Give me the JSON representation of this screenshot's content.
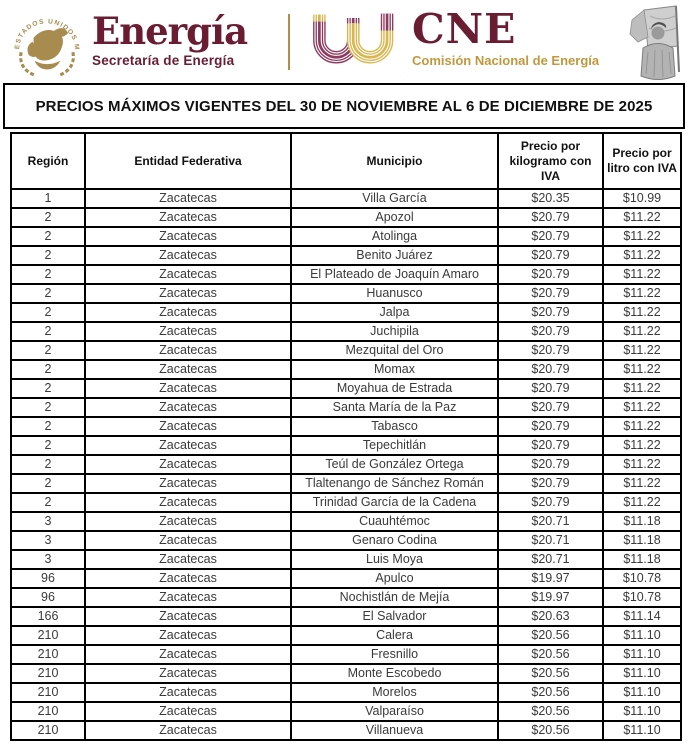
{
  "branding": {
    "sener": {
      "seal_text": "ESTADOS UNIDOS MEXICANOS",
      "wordmark": "Energía",
      "subtitle": "Secretaría de Energía"
    },
    "cne": {
      "wordmark": "CNE",
      "subtitle": "Comisión Nacional de Energía"
    }
  },
  "colors": {
    "maroon": "#691c32",
    "gold": "#b08e4a",
    "cne_arc_gold": "#d9b64e",
    "cne_arc_maroon": "#8d3a60",
    "cne_subtitle_gold": "#c1983d",
    "table_border": "#000000",
    "body_text": "#3a3a3a"
  },
  "title": "PRECIOS MÁXIMOS VIGENTES DEL 30 DE NOVIEMBRE AL 6 DE DICIEMBRE DE 2025",
  "table": {
    "columns": [
      "Región",
      "Entidad Federativa",
      "Municipio",
      "Precio por kilogramo con IVA",
      "Precio por litro con IVA"
    ],
    "rows": [
      [
        "1",
        "Zacatecas",
        "Villa García",
        "$20.35",
        "$10.99"
      ],
      [
        "2",
        "Zacatecas",
        "Apozol",
        "$20.79",
        "$11.22"
      ],
      [
        "2",
        "Zacatecas",
        "Atolinga",
        "$20.79",
        "$11.22"
      ],
      [
        "2",
        "Zacatecas",
        "Benito Juárez",
        "$20.79",
        "$11.22"
      ],
      [
        "2",
        "Zacatecas",
        "El Plateado de Joaquín Amaro",
        "$20.79",
        "$11.22"
      ],
      [
        "2",
        "Zacatecas",
        "Huanusco",
        "$20.79",
        "$11.22"
      ],
      [
        "2",
        "Zacatecas",
        "Jalpa",
        "$20.79",
        "$11.22"
      ],
      [
        "2",
        "Zacatecas",
        "Juchipila",
        "$20.79",
        "$11.22"
      ],
      [
        "2",
        "Zacatecas",
        "Mezquital del Oro",
        "$20.79",
        "$11.22"
      ],
      [
        "2",
        "Zacatecas",
        "Momax",
        "$20.79",
        "$11.22"
      ],
      [
        "2",
        "Zacatecas",
        "Moyahua de Estrada",
        "$20.79",
        "$11.22"
      ],
      [
        "2",
        "Zacatecas",
        "Santa María de la Paz",
        "$20.79",
        "$11.22"
      ],
      [
        "2",
        "Zacatecas",
        "Tabasco",
        "$20.79",
        "$11.22"
      ],
      [
        "2",
        "Zacatecas",
        "Tepechitlán",
        "$20.79",
        "$11.22"
      ],
      [
        "2",
        "Zacatecas",
        "Teúl de González Ortega",
        "$20.79",
        "$11.22"
      ],
      [
        "2",
        "Zacatecas",
        "Tlaltenango de Sánchez Román",
        "$20.79",
        "$11.22"
      ],
      [
        "2",
        "Zacatecas",
        "Trinidad García de la Cadena",
        "$20.79",
        "$11.22"
      ],
      [
        "3",
        "Zacatecas",
        "Cuauhtémoc",
        "$20.71",
        "$11.18"
      ],
      [
        "3",
        "Zacatecas",
        "Genaro Codina",
        "$20.71",
        "$11.18"
      ],
      [
        "3",
        "Zacatecas",
        "Luis Moya",
        "$20.71",
        "$11.18"
      ],
      [
        "96",
        "Zacatecas",
        "Apulco",
        "$19.97",
        "$10.78"
      ],
      [
        "96",
        "Zacatecas",
        "Nochistlán de Mejía",
        "$19.97",
        "$10.78"
      ],
      [
        "166",
        "Zacatecas",
        "El Salvador",
        "$20.63",
        "$11.14"
      ],
      [
        "210",
        "Zacatecas",
        "Calera",
        "$20.56",
        "$11.10"
      ],
      [
        "210",
        "Zacatecas",
        "Fresnillo",
        "$20.56",
        "$11.10"
      ],
      [
        "210",
        "Zacatecas",
        "Monte Escobedo",
        "$20.56",
        "$11.10"
      ],
      [
        "210",
        "Zacatecas",
        "Morelos",
        "$20.56",
        "$11.10"
      ],
      [
        "210",
        "Zacatecas",
        "Valparaíso",
        "$20.56",
        "$11.10"
      ],
      [
        "210",
        "Zacatecas",
        "Villanueva",
        "$20.56",
        "$11.10"
      ]
    ]
  }
}
